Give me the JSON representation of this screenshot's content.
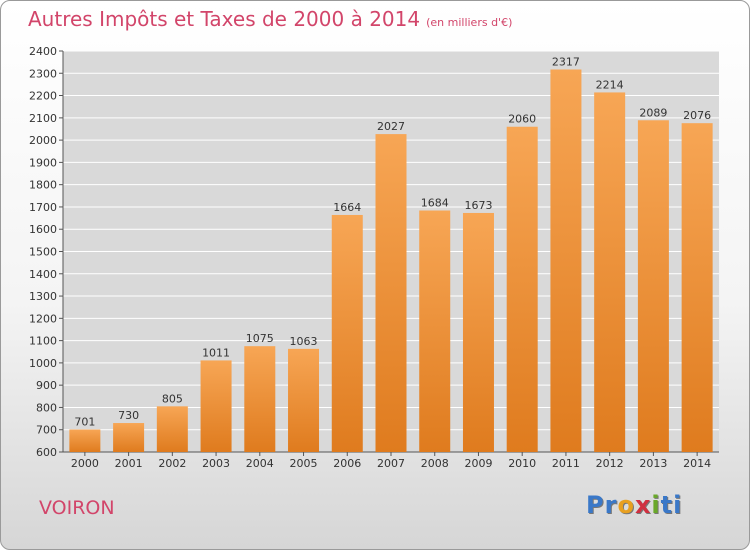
{
  "header": {
    "title": "Autres Impôts et Taxes de 2000 à 2014",
    "unit": "(en milliers d'€)"
  },
  "footer": {
    "city": "VOIRON",
    "logo_parts": [
      "Pr",
      "o",
      "x",
      "i",
      "ti"
    ],
    "logo_colors": [
      "#3a78c8",
      "#e8a020",
      "#d03040",
      "#6aa82a",
      "#3a78c8"
    ]
  },
  "chart_data": {
    "type": "bar",
    "title": "Autres Impôts et Taxes de 2000 à 2014",
    "subtitle": "(en milliers d'€)",
    "categories": [
      "2000",
      "2001",
      "2002",
      "2003",
      "2004",
      "2005",
      "2006",
      "2007",
      "2008",
      "2009",
      "2010",
      "2011",
      "2012",
      "2013",
      "2014"
    ],
    "values": [
      701,
      730,
      805,
      1011,
      1075,
      1063,
      1664,
      2027,
      1684,
      1673,
      2060,
      2317,
      2214,
      2089,
      2076
    ],
    "ylim": [
      600,
      2400
    ],
    "ytick_step": 100,
    "grid": true,
    "colors": {
      "bar_top": "#f7a655",
      "bar_bottom": "#df7b1e",
      "grid": "#ffffff",
      "plot_bg": "#d9d9d9"
    }
  }
}
